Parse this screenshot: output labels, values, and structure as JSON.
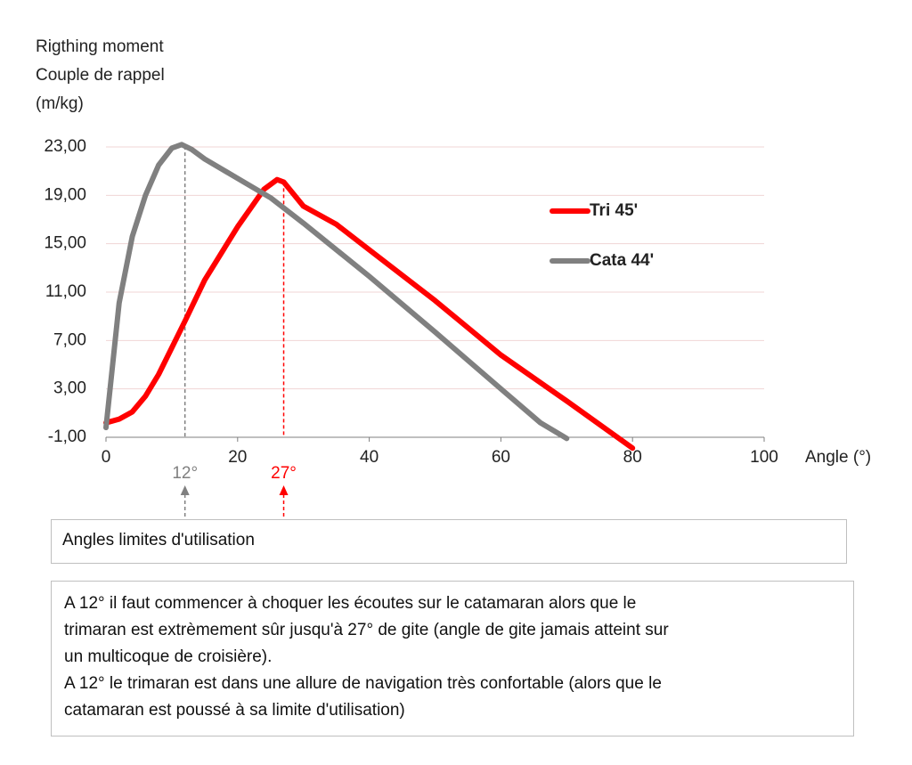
{
  "chart_data": {
    "type": "line",
    "y_label_lines": [
      "Rigthing moment",
      "Couple de rappel",
      "(m/kg)"
    ],
    "x_label": "Angle (°)",
    "xlim": [
      0,
      100
    ],
    "xticks": [
      0,
      20,
      40,
      60,
      80,
      100
    ],
    "ylim": [
      -1,
      23
    ],
    "yticks": [
      {
        "value": -1,
        "label": "-1,00"
      },
      {
        "value": 3,
        "label": "3,00"
      },
      {
        "value": 7,
        "label": "7,00"
      },
      {
        "value": 11,
        "label": "11,00"
      },
      {
        "value": 15,
        "label": "15,00"
      },
      {
        "value": 19,
        "label": "19,00"
      },
      {
        "value": 23,
        "label": "23,00"
      }
    ],
    "grid": true,
    "legend": "right",
    "series": [
      {
        "name": "Tri 45'",
        "color": "#ff0000",
        "x": [
          0,
          2,
          4,
          6,
          8,
          10,
          12,
          15,
          20,
          24,
          26,
          27,
          30,
          35,
          40,
          50,
          60,
          70,
          80
        ],
        "values": [
          0.2,
          0.5,
          1.1,
          2.4,
          4.2,
          6.4,
          8.6,
          12,
          16.4,
          19.5,
          20.3,
          20.1,
          18.1,
          16.6,
          14.5,
          10.3,
          5.8,
          2.0,
          -1.9
        ]
      },
      {
        "name": "Cata 44'",
        "color": "#808080",
        "x": [
          0,
          2,
          4,
          6,
          8,
          10,
          11.5,
          13,
          15,
          20,
          25,
          30,
          40,
          50,
          60,
          66,
          70
        ],
        "values": [
          -0.2,
          10.1,
          15.6,
          19,
          21.5,
          22.9,
          23.2,
          22.8,
          22,
          20.4,
          18.8,
          16.7,
          12.3,
          7.7,
          3.0,
          0.2,
          -1.1
        ]
      }
    ],
    "markers": [
      {
        "x": 12,
        "label": "12°",
        "color": "#808080"
      },
      {
        "x": 27,
        "label": "27°",
        "color": "#ff0000"
      }
    ]
  },
  "boxes": {
    "title": "Angles limites d'utilisation",
    "note_lines": [
      "A 12° il faut commencer à choquer les écoutes sur le catamaran alors que le",
      "trimaran est extrèmement sûr jusqu'à 27° de gite (angle de gite jamais atteint sur",
      "un multicoque de croisière).",
      "A 12° le trimaran est dans une allure de navigation très confortable (alors que le",
      "catamaran est poussé à sa limite d'utilisation)"
    ]
  }
}
